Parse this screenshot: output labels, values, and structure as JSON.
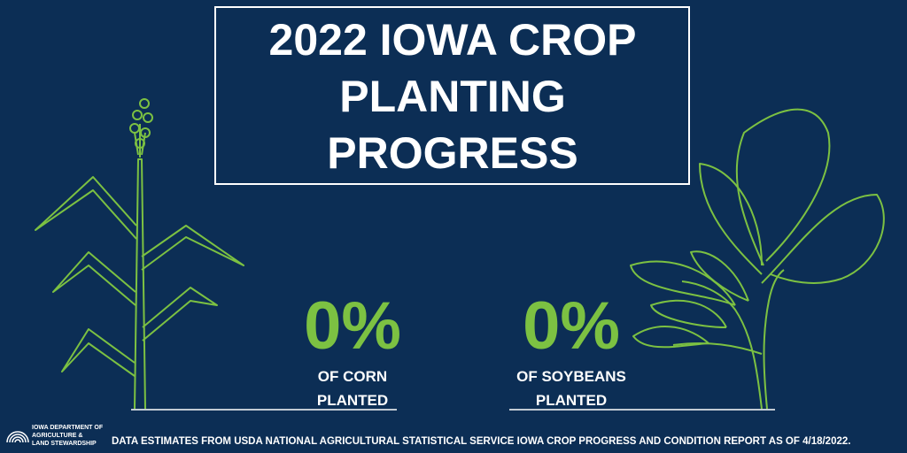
{
  "header": {
    "title_lines": [
      "2022 IOWA CROP",
      "PLANTING",
      "PROGRESS"
    ]
  },
  "stats": [
    {
      "value": "0%",
      "label_lines": [
        "OF CORN",
        "PLANTED"
      ]
    },
    {
      "value": "0%",
      "label_lines": [
        "OF SOYBEANS",
        "PLANTED"
      ]
    }
  ],
  "logo": {
    "lines": [
      "IOWA DEPARTMENT OF",
      "AGRICULTURE &",
      "LAND STEWARDSHIP"
    ]
  },
  "footer": {
    "text": "DATA ESTIMATES FROM USDA NATIONAL AGRICULTURAL STATISTICAL SERVICE IOWA CROP PROGRESS AND CONDITION REPORT AS OF 4/18/2022."
  }
}
